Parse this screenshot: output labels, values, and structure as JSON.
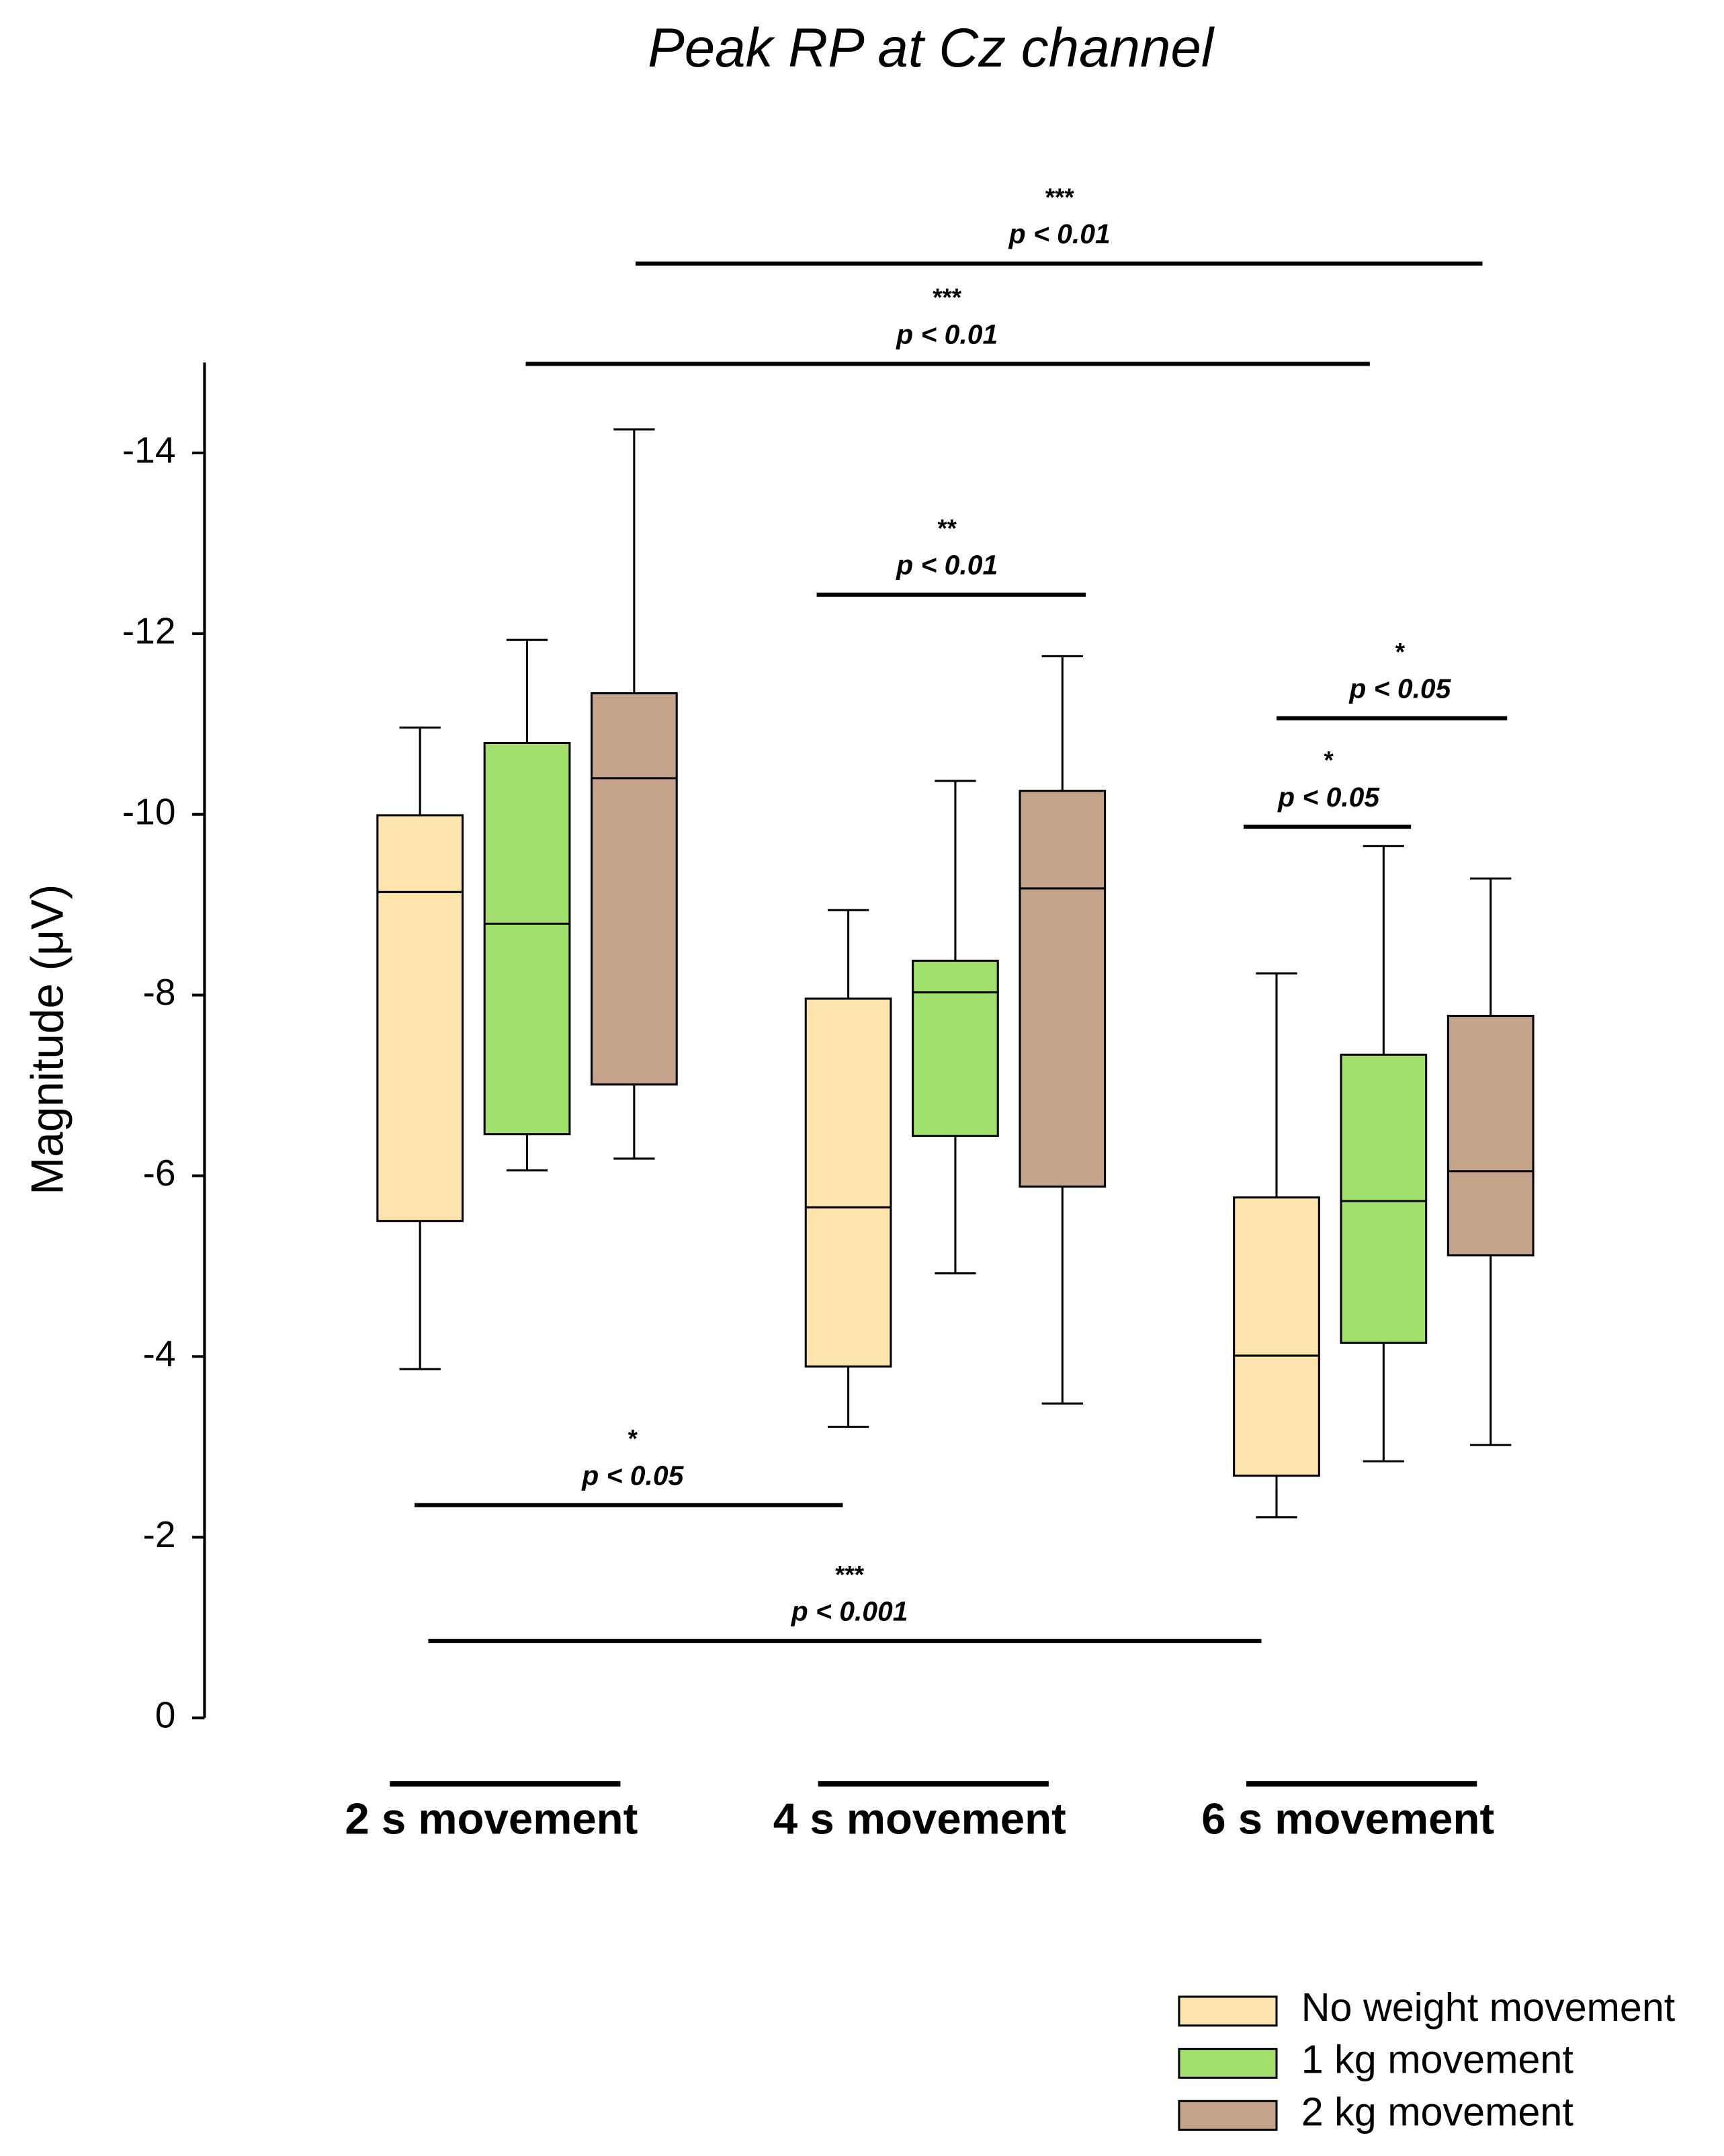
{
  "chart_data": {
    "type": "box",
    "title": "Peak RP at Cz channel",
    "ylabel": "Magnitude (μV)",
    "categories": [
      "2 s movement",
      "4 s movement",
      "6 s movement"
    ],
    "ylim": [
      0,
      -15
    ],
    "yticks": [
      0,
      -2,
      -4,
      -6,
      -8,
      -10,
      -12,
      -14
    ],
    "series": [
      {
        "name": "No weight movement",
        "color": "#fde4ad",
        "whisker_low": [
          -3.86,
          -3.22,
          -2.22
        ],
        "q1": [
          -5.5,
          -3.89,
          -2.68
        ],
        "median": [
          -9.14,
          -5.65,
          -4.01
        ],
        "q3": [
          -9.99,
          -7.96,
          -5.76
        ],
        "whisker_high": [
          -10.96,
          -8.94,
          -8.24
        ]
      },
      {
        "name": "1 kg movement",
        "color": "#a1e06d",
        "whisker_low": [
          -6.06,
          -4.92,
          -2.84
        ],
        "q1": [
          -6.46,
          -6.44,
          -4.15
        ],
        "median": [
          -8.79,
          -8.03,
          -5.72
        ],
        "q3": [
          -10.79,
          -8.38,
          -7.34
        ],
        "whisker_high": [
          -11.93,
          -10.37,
          -9.65
        ]
      },
      {
        "name": "2 kg movement",
        "color": "#c4a38a",
        "whisker_low": [
          -6.19,
          -3.48,
          -3.02
        ],
        "q1": [
          -7.01,
          -5.88,
          -5.12
        ],
        "median": [
          -10.4,
          -9.18,
          -6.05
        ],
        "q3": [
          -11.34,
          -10.26,
          -7.77
        ],
        "whisker_high": [
          -14.26,
          -11.75,
          -9.29
        ]
      }
    ],
    "annotations": [
      {
        "stars": "***",
        "text": "p < 0.01"
      },
      {
        "stars": "***",
        "text": "p < 0.01"
      },
      {
        "stars": "**",
        "text": "p < 0.01"
      },
      {
        "stars": "*",
        "text": "p < 0.05"
      },
      {
        "stars": "*",
        "text": "p < 0.05"
      },
      {
        "stars": "*",
        "text": "p < 0.05"
      },
      {
        "stars": "***",
        "text": "p < 0.001"
      }
    ]
  }
}
